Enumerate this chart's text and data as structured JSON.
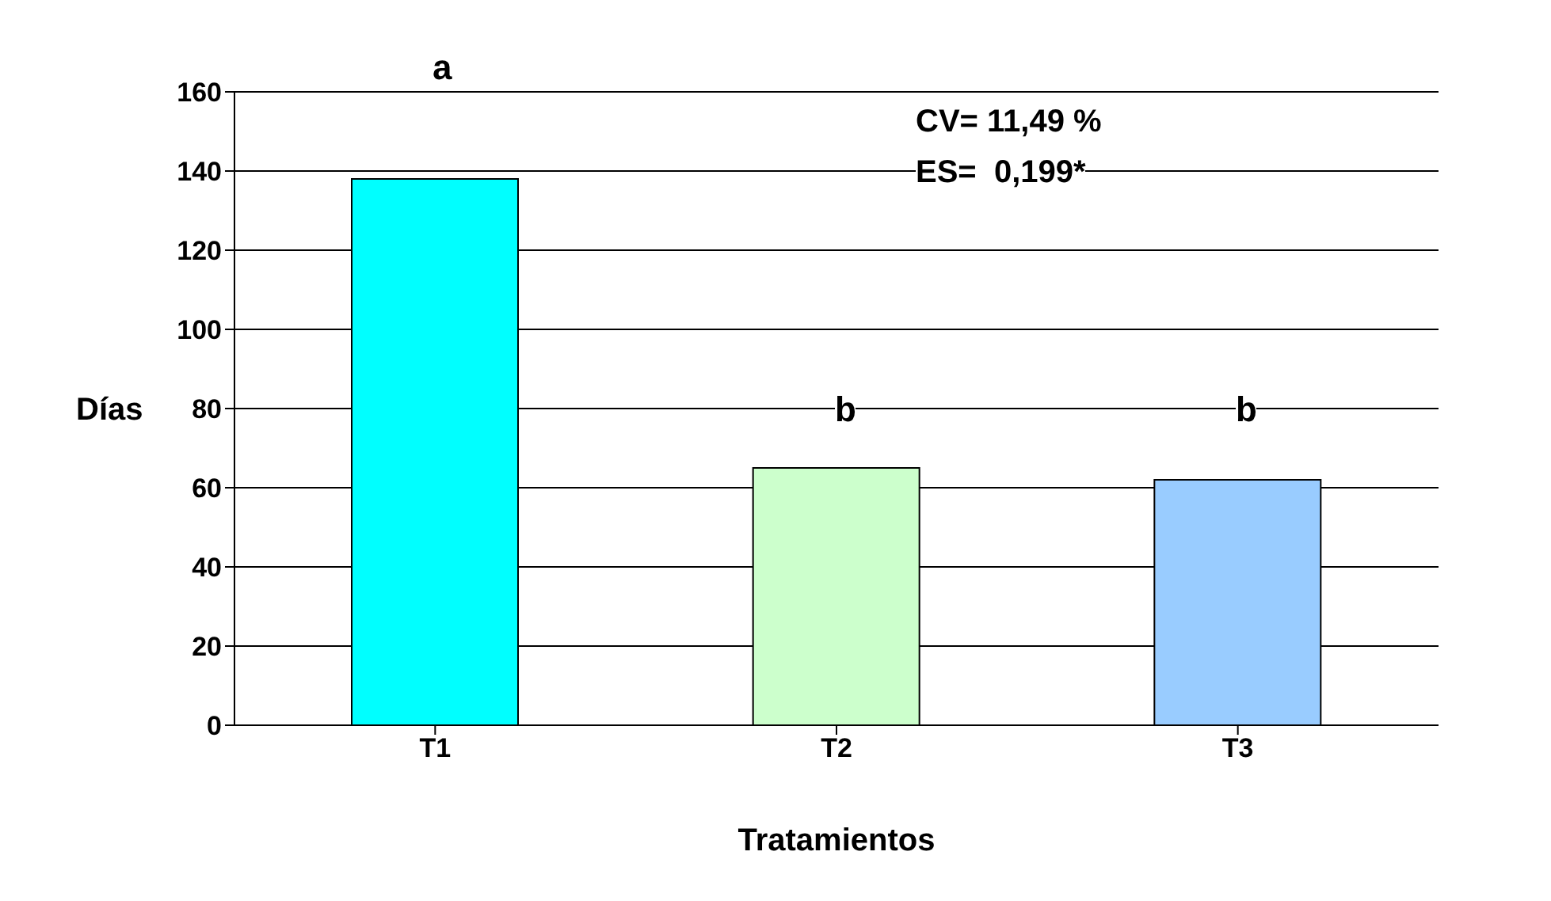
{
  "chart_data": {
    "type": "bar",
    "xlabel": "Tratamientos",
    "ylabel": "Días",
    "categories": [
      "T1",
      "T2",
      "T3"
    ],
    "values": [
      138,
      65,
      62
    ],
    "colors": [
      "#00ffff",
      "#ccffcc",
      "#99ccff"
    ],
    "ylim": [
      0,
      160
    ],
    "yticks": [
      0,
      20,
      40,
      60,
      80,
      100,
      120,
      140,
      160
    ],
    "grid": "y",
    "annotations": [
      "a",
      "b",
      "b",
      "CV= 11,49 %",
      "ES=  0,199*"
    ]
  }
}
